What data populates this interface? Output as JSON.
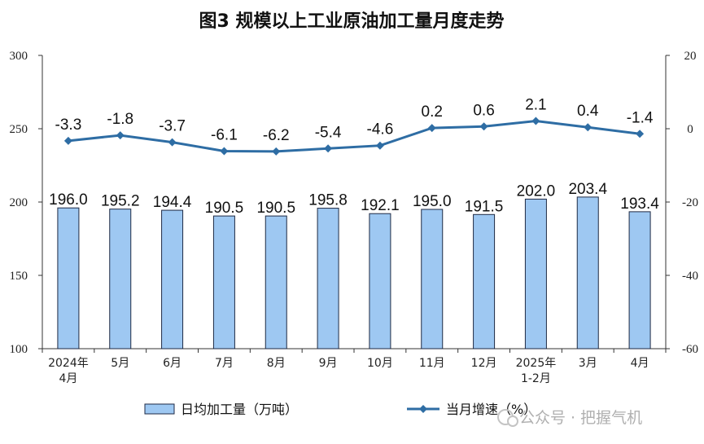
{
  "title": "图3  规模以上工业原油加工量月度走势",
  "legend": {
    "bar_label": "日均加工量（万吨）",
    "line_label": "当月增速（%）"
  },
  "watermark": "公众号 · 把握气机",
  "colors": {
    "bar_fill": "#9ec8f2",
    "bar_stroke": "#1f2a44",
    "line": "#2e6da4",
    "axis": "#333333"
  },
  "chart_data": {
    "type": "bar",
    "categories": [
      [
        "2024年",
        "4月"
      ],
      [
        "5月"
      ],
      [
        "6月"
      ],
      [
        "7月"
      ],
      [
        "8月"
      ],
      [
        "9月"
      ],
      [
        "10月"
      ],
      [
        "11月"
      ],
      [
        "12月"
      ],
      [
        "2025年",
        "1-2月"
      ],
      [
        "3月"
      ],
      [
        "4月"
      ]
    ],
    "series": [
      {
        "name": "日均加工量（万吨）",
        "type": "bar",
        "axis": "left",
        "values": [
          196.0,
          195.2,
          194.4,
          190.5,
          190.5,
          195.8,
          192.1,
          195.0,
          191.5,
          202.0,
          203.4,
          193.4
        ],
        "labels": [
          "196.0",
          "195.2",
          "194.4",
          "190.5",
          "190.5",
          "195.8",
          "192.1",
          "195.0",
          "191.5",
          "202.0",
          "203.4",
          "193.4"
        ]
      },
      {
        "name": "当月增速（%）",
        "type": "line",
        "axis": "right",
        "values": [
          -3.3,
          -1.8,
          -3.7,
          -6.1,
          -6.2,
          -5.4,
          -4.6,
          0.2,
          0.6,
          2.1,
          0.4,
          -1.4
        ],
        "labels": [
          "-3.3",
          "-1.8",
          "-3.7",
          "-6.1",
          "-6.2",
          "-5.4",
          "-4.6",
          "0.2",
          "0.6",
          "2.1",
          "0.4",
          "-1.4"
        ]
      }
    ],
    "y_left": {
      "min": 100,
      "max": 300,
      "ticks": [
        "100",
        "150",
        "200",
        "250",
        "300"
      ]
    },
    "y_right": {
      "min": -60,
      "max": 20,
      "ticks": [
        "-60",
        "-40",
        "-20",
        "0",
        "20"
      ]
    },
    "grid": false,
    "legend_position": "bottom"
  }
}
